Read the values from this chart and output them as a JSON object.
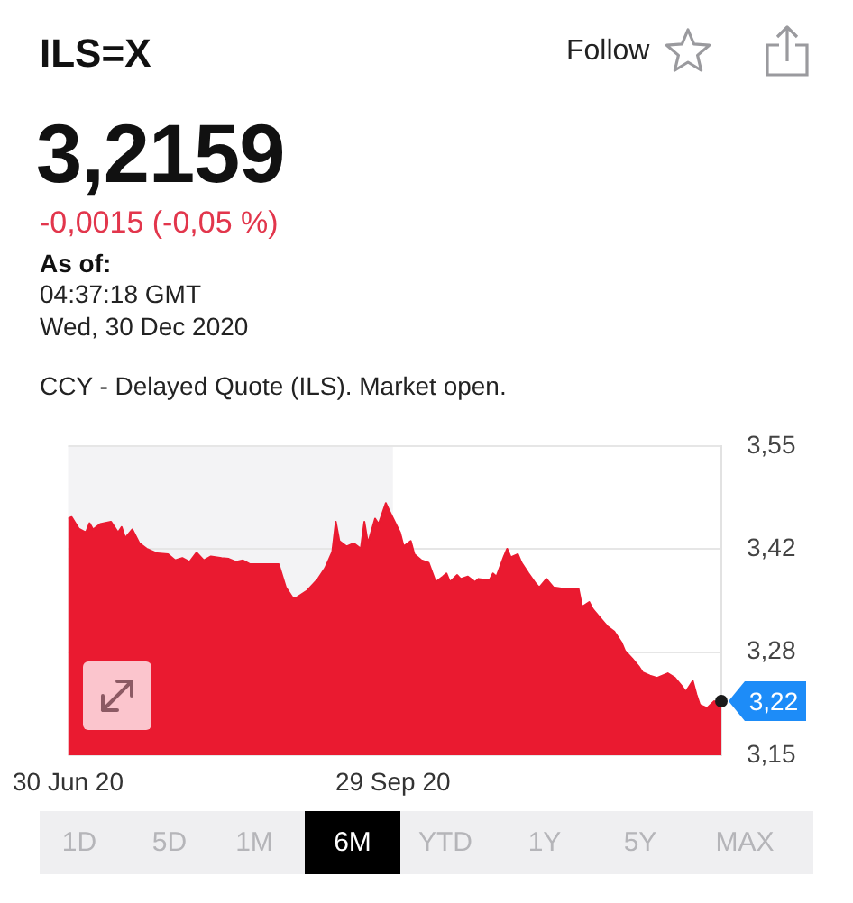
{
  "chart_data": {
    "type": "area",
    "title": "ILS=X",
    "subtitle": "3,2159",
    "annotations": [
      "Follow",
      "-0,0015 (-0,05 %)",
      "As of:",
      "04:37:18 GMT",
      "Wed, 30 Dec 2020",
      "CCY - Delayed Quote (ILS). Market open.",
      "1D",
      "5D",
      "1M",
      "6M",
      "YTD",
      "1Y",
      "5Y",
      "MAX",
      {
        "text": "3,22",
        "x": "2020-12-30",
        "y": 3.22
      }
    ],
    "x": [
      "2020-06-30",
      "2020-07-01",
      "2020-07-03",
      "2020-07-05",
      "2020-07-06",
      "2020-07-07",
      "2020-07-09",
      "2020-07-12",
      "2020-07-14",
      "2020-07-15",
      "2020-07-16",
      "2020-07-18",
      "2020-07-20",
      "2020-07-22",
      "2020-07-25",
      "2020-07-28",
      "2020-07-30",
      "2020-08-01",
      "2020-08-03",
      "2020-08-05",
      "2020-08-07",
      "2020-08-09",
      "2020-08-12",
      "2020-08-14",
      "2020-08-16",
      "2020-08-18",
      "2020-08-20",
      "2020-08-28",
      "2020-08-30",
      "2020-09-01",
      "2020-09-02",
      "2020-09-05",
      "2020-09-08",
      "2020-09-10",
      "2020-09-12",
      "2020-09-13",
      "2020-09-14",
      "2020-09-16",
      "2020-09-18",
      "2020-09-20",
      "2020-09-21",
      "2020-09-22",
      "2020-09-24",
      "2020-09-25",
      "2020-09-27",
      "2020-09-28",
      "2020-10-01",
      "2020-10-02",
      "2020-10-04",
      "2020-10-05",
      "2020-10-07",
      "2020-10-09",
      "2020-10-11",
      "2020-10-13",
      "2020-10-14",
      "2020-10-15",
      "2020-10-17",
      "2020-10-18",
      "2020-10-20",
      "2020-10-22",
      "2020-10-23",
      "2020-10-26",
      "2020-10-27",
      "2020-10-28",
      "2020-10-30",
      "2020-10-31",
      "2020-11-01",
      "2020-11-03",
      "2020-11-04",
      "2020-11-06",
      "2020-11-08",
      "2020-11-09",
      "2020-11-11",
      "2020-11-13",
      "2020-11-16",
      "2020-11-20",
      "2020-11-21",
      "2020-11-23",
      "2020-11-24",
      "2020-11-26",
      "2020-11-28",
      "2020-11-30",
      "2020-12-02",
      "2020-12-03",
      "2020-12-05",
      "2020-12-07",
      "2020-12-08",
      "2020-12-10",
      "2020-12-12",
      "2020-12-15",
      "2020-12-17",
      "2020-12-19",
      "2020-12-20",
      "2020-12-22",
      "2020-12-23",
      "2020-12-24",
      "2020-12-26",
      "2020-12-28",
      "2020-12-29",
      "2020-12-30"
    ],
    "series": [
      {
        "color": "#ea1a30",
        "values": [
          3.456,
          3.458,
          3.443,
          3.438,
          3.45,
          3.442,
          3.449,
          3.452,
          3.438,
          3.445,
          3.431,
          3.442,
          3.424,
          3.417,
          3.411,
          3.41,
          3.402,
          3.405,
          3.4,
          3.412,
          3.402,
          3.407,
          3.405,
          3.404,
          3.4,
          3.402,
          3.397,
          3.397,
          3.367,
          3.353,
          3.354,
          3.363,
          3.378,
          3.392,
          3.413,
          3.452,
          3.427,
          3.42,
          3.424,
          3.417,
          3.452,
          3.424,
          3.456,
          3.449,
          3.476,
          3.466,
          3.438,
          3.42,
          3.427,
          3.41,
          3.402,
          3.399,
          3.374,
          3.381,
          3.385,
          3.374,
          3.383,
          3.378,
          3.381,
          3.374,
          3.378,
          3.376,
          3.385,
          3.381,
          3.406,
          3.417,
          3.406,
          3.41,
          3.399,
          3.385,
          3.372,
          3.367,
          3.378,
          3.367,
          3.365,
          3.365,
          3.342,
          3.348,
          3.339,
          3.328,
          3.317,
          3.31,
          3.296,
          3.285,
          3.275,
          3.264,
          3.257,
          3.253,
          3.25,
          3.256,
          3.25,
          3.239,
          3.232,
          3.246,
          3.229,
          3.215,
          3.211,
          3.22,
          3.216,
          3.216
        ]
      }
    ],
    "xlim": [
      "2020-06-30",
      "2020-12-30"
    ],
    "xticks": [
      {
        "value": "2020-06-30",
        "label": "30 Jun 20"
      },
      {
        "value": "2020-09-29",
        "label": "29 Sep 20"
      }
    ],
    "ylim": [
      3.15,
      3.55
    ],
    "yticks": [
      {
        "value": 3.15,
        "label": "3,15"
      },
      {
        "value": 3.2833,
        "label": "3,28"
      },
      {
        "value": 3.4167,
        "label": "3,42"
      },
      {
        "value": 3.55,
        "label": "3,55"
      }
    ],
    "grid": "y",
    "bands": [
      {
        "axis": "x",
        "from": "2020-06-30",
        "to": "2020-09-29",
        "color": "#f3f3f5"
      }
    ]
  }
}
